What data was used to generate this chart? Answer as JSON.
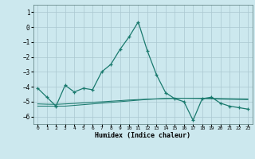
{
  "xlabel": "Humidex (Indice chaleur)",
  "bg_color": "#cce8ee",
  "grid_color": "#aac8d0",
  "line_color": "#1a7a6e",
  "x": [
    0,
    1,
    2,
    3,
    4,
    5,
    6,
    7,
    8,
    9,
    10,
    11,
    12,
    13,
    14,
    15,
    16,
    17,
    18,
    19,
    20,
    21,
    22,
    23
  ],
  "y_main": [
    -4.1,
    -4.7,
    -5.3,
    -3.9,
    -4.35,
    -4.1,
    -4.2,
    -3.0,
    -2.5,
    -1.5,
    -0.65,
    0.35,
    -1.6,
    -3.2,
    -4.4,
    -4.8,
    -5.0,
    -6.25,
    -4.8,
    -4.7,
    -5.1,
    -5.3,
    -5.4,
    -5.5
  ],
  "y_flat1": [
    -5.3,
    -5.3,
    -5.3,
    -5.3,
    -5.25,
    -5.2,
    -5.15,
    -5.1,
    -5.05,
    -5.0,
    -4.95,
    -4.9,
    -4.85,
    -4.82,
    -4.79,
    -4.78,
    -4.77,
    -4.77,
    -4.77,
    -4.78,
    -4.79,
    -4.8,
    -4.81,
    -4.82
  ],
  "y_flat2": [
    -5.15,
    -5.17,
    -5.18,
    -5.15,
    -5.12,
    -5.08,
    -5.04,
    -5.01,
    -4.97,
    -4.93,
    -4.89,
    -4.86,
    -4.83,
    -4.81,
    -4.79,
    -4.78,
    -4.77,
    -4.78,
    -4.79,
    -4.81,
    -4.83,
    -4.84,
    -4.85,
    -4.86
  ],
  "ylim": [
    -6.5,
    1.5
  ],
  "yticks": [
    1,
    0,
    -1,
    -2,
    -3,
    -4,
    -5,
    -6
  ],
  "xticks": [
    0,
    1,
    2,
    3,
    4,
    5,
    6,
    7,
    8,
    9,
    10,
    11,
    12,
    13,
    14,
    15,
    16,
    17,
    18,
    19,
    20,
    21,
    22,
    23
  ]
}
